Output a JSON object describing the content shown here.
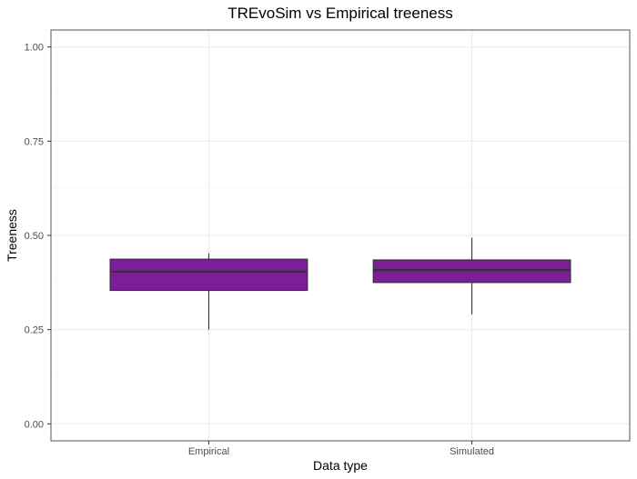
{
  "chart_data": {
    "type": "boxplot",
    "title": "TREvoSim vs Empirical treeness",
    "xlabel": "Data type",
    "ylabel": "Treeness",
    "ylim": [
      -0.045,
      1.045
    ],
    "y_ticks": [
      0.0,
      0.25,
      0.5,
      0.75,
      1.0
    ],
    "y_tick_labels": [
      "0.00",
      "0.25",
      "0.50",
      "0.75",
      "1.00"
    ],
    "categories": [
      "Empirical",
      "Simulated"
    ],
    "boxes": [
      {
        "category": "Empirical",
        "min": 0.25,
        "q1": 0.354,
        "median": 0.404,
        "q3": 0.437,
        "max": 0.452
      },
      {
        "category": "Simulated",
        "min": 0.291,
        "q1": 0.375,
        "median": 0.408,
        "q3": 0.435,
        "max": 0.494
      }
    ],
    "fill_color": "#7b1f98",
    "grid": true,
    "legend": false
  }
}
